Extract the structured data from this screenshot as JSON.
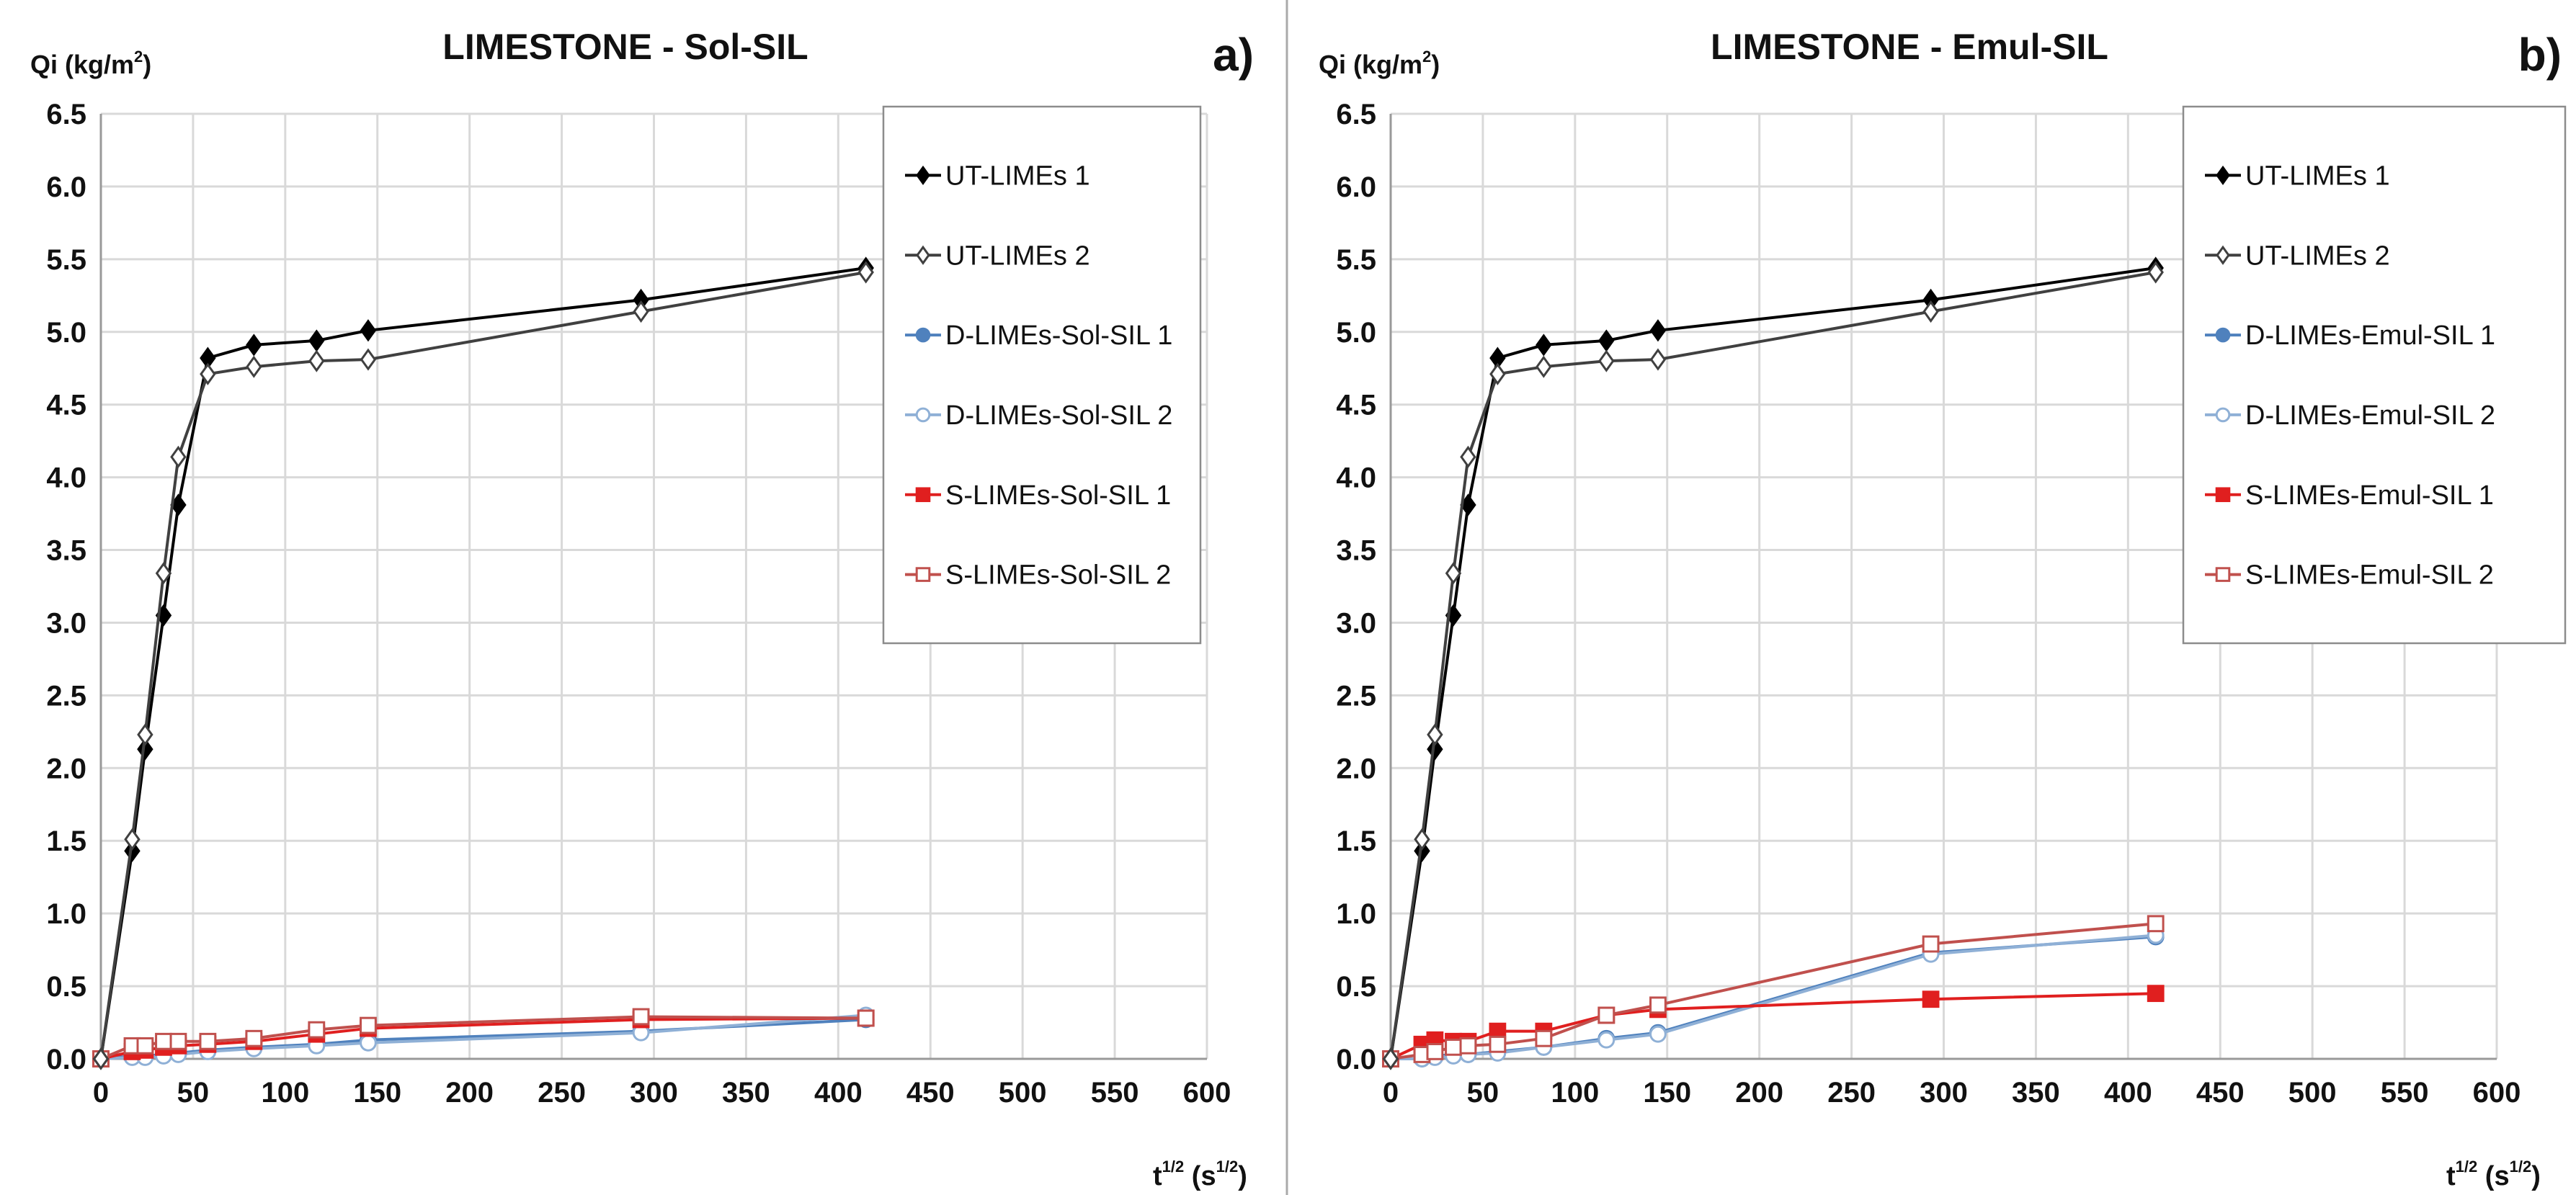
{
  "colors": {
    "black": "#000000",
    "grey_dark": "#404040",
    "blue": "#4f81bd",
    "blue_light": "#8fb0d6",
    "red": "#e01f1f",
    "red_dark": "#c0504d"
  },
  "axes_common": {
    "y_label_main": "Qi (kg/m",
    "y_label_sup": "2",
    "y_label_end": ")",
    "x_label_main": "t",
    "x_label_sup": "1/2",
    "x_label_mid": " (s",
    "x_label_sup2": "1/2",
    "x_label_end": ")",
    "xlim": [
      0,
      600
    ],
    "ylim": [
      0,
      6.5
    ],
    "x_ticks": [
      "0",
      "50",
      "100",
      "150",
      "200",
      "250",
      "300",
      "350",
      "400",
      "450",
      "500",
      "550",
      "600"
    ],
    "y_ticks": [
      "0.0",
      "0.5",
      "1.0",
      "1.5",
      "2.0",
      "2.5",
      "3.0",
      "3.5",
      "4.0",
      "4.5",
      "5.0",
      "5.5",
      "6.0",
      "6.5"
    ]
  },
  "chart_data": [
    {
      "type": "line",
      "title": "LIMESTONE - Sol-SIL",
      "panel": "a)",
      "xlabel": "t^1/2 (s^1/2)",
      "ylabel": "Qi (kg/m2)",
      "xlim": [
        0,
        600
      ],
      "ylim": [
        0,
        6.5
      ],
      "series": [
        {
          "name": "UT-LIMEs 1",
          "marker": "diamond",
          "filled": true,
          "color": "#000000",
          "x": [
            0,
            17,
            24,
            34,
            42,
            58,
            83,
            117,
            145,
            293,
            415
          ],
          "y": [
            0.0,
            1.43,
            2.13,
            3.05,
            3.81,
            4.82,
            4.91,
            4.94,
            5.01,
            5.22,
            5.44
          ]
        },
        {
          "name": "UT-LIMEs 2",
          "marker": "diamond",
          "filled": false,
          "color": "#404040",
          "x": [
            0,
            17,
            24,
            34,
            42,
            58,
            83,
            117,
            145,
            293,
            415
          ],
          "y": [
            0.0,
            1.51,
            2.23,
            3.34,
            4.14,
            4.71,
            4.76,
            4.8,
            4.81,
            5.14,
            5.41
          ]
        },
        {
          "name": "D-LIMEs-Sol-SIL 1",
          "marker": "circle",
          "filled": true,
          "color": "#4f81bd",
          "x": [
            0,
            17,
            24,
            34,
            42,
            58,
            83,
            117,
            145,
            293,
            415
          ],
          "y": [
            0.0,
            0.02,
            0.02,
            0.03,
            0.04,
            0.06,
            0.08,
            0.1,
            0.13,
            0.19,
            0.27
          ]
        },
        {
          "name": "D-LIMEs-Sol-SIL 2",
          "marker": "circle",
          "filled": false,
          "color": "#8fb0d6",
          "x": [
            0,
            17,
            24,
            34,
            42,
            58,
            83,
            117,
            145,
            293,
            415
          ],
          "y": [
            0.0,
            0.01,
            0.01,
            0.02,
            0.03,
            0.05,
            0.07,
            0.09,
            0.11,
            0.18,
            0.3
          ]
        },
        {
          "name": "S-LIMEs-Sol-SIL 1",
          "marker": "square",
          "filled": true,
          "color": "#e01f1f",
          "x": [
            0,
            17,
            24,
            34,
            42,
            58,
            83,
            117,
            145,
            293,
            415
          ],
          "y": [
            0.0,
            0.05,
            0.06,
            0.08,
            0.09,
            0.1,
            0.12,
            0.17,
            0.21,
            0.27,
            0.28
          ]
        },
        {
          "name": "S-LIMEs-Sol-SIL 2",
          "marker": "square",
          "filled": false,
          "color": "#c0504d",
          "x": [
            0,
            17,
            24,
            34,
            42,
            58,
            83,
            117,
            145,
            293,
            415
          ],
          "y": [
            0.0,
            0.09,
            0.09,
            0.12,
            0.12,
            0.12,
            0.14,
            0.2,
            0.23,
            0.29,
            0.28
          ]
        }
      ]
    },
    {
      "type": "line",
      "title": "LIMESTONE - Emul-SIL",
      "panel": "b)",
      "xlabel": "t^1/2 (s^1/2)",
      "ylabel": "Qi (kg/m2)",
      "xlim": [
        0,
        600
      ],
      "ylim": [
        0,
        6.5
      ],
      "series": [
        {
          "name": "UT-LIMEs 1",
          "marker": "diamond",
          "filled": true,
          "color": "#000000",
          "x": [
            0,
            17,
            24,
            34,
            42,
            58,
            83,
            117,
            145,
            293,
            415
          ],
          "y": [
            0.0,
            1.43,
            2.13,
            3.05,
            3.81,
            4.82,
            4.91,
            4.94,
            5.01,
            5.22,
            5.44
          ]
        },
        {
          "name": "UT-LIMEs 2",
          "marker": "diamond",
          "filled": false,
          "color": "#404040",
          "x": [
            0,
            17,
            24,
            34,
            42,
            58,
            83,
            117,
            145,
            293,
            415
          ],
          "y": [
            0.0,
            1.51,
            2.23,
            3.34,
            4.14,
            4.71,
            4.76,
            4.8,
            4.81,
            5.14,
            5.41
          ]
        },
        {
          "name": "D-LIMEs-Emul-SIL 1",
          "marker": "circle",
          "filled": true,
          "color": "#4f81bd",
          "x": [
            0,
            17,
            24,
            34,
            42,
            58,
            83,
            117,
            145,
            293,
            415
          ],
          "y": [
            0.0,
            0.0,
            0.02,
            0.03,
            0.03,
            0.05,
            0.08,
            0.14,
            0.18,
            0.73,
            0.84
          ]
        },
        {
          "name": "D-LIMEs-Emul-SIL 2",
          "marker": "circle",
          "filled": false,
          "color": "#8fb0d6",
          "x": [
            0,
            17,
            24,
            34,
            42,
            58,
            83,
            117,
            145,
            293,
            415
          ],
          "y": [
            0.0,
            0.0,
            0.01,
            0.02,
            0.03,
            0.04,
            0.08,
            0.13,
            0.17,
            0.72,
            0.85
          ]
        },
        {
          "name": "S-LIMEs-Emul-SIL 1",
          "marker": "square",
          "filled": true,
          "color": "#e01f1f",
          "x": [
            0,
            17,
            24,
            34,
            42,
            58,
            83,
            117,
            145,
            293,
            415
          ],
          "y": [
            0.0,
            0.1,
            0.13,
            0.12,
            0.12,
            0.19,
            0.19,
            0.3,
            0.34,
            0.41,
            0.45
          ]
        },
        {
          "name": "S-LIMEs-Emul-SIL 2",
          "marker": "square",
          "filled": false,
          "color": "#c0504d",
          "x": [
            0,
            17,
            24,
            34,
            42,
            58,
            83,
            117,
            145,
            293,
            415
          ],
          "y": [
            0.0,
            0.03,
            0.05,
            0.08,
            0.09,
            0.1,
            0.14,
            0.3,
            0.37,
            0.79,
            0.93
          ]
        }
      ]
    }
  ]
}
